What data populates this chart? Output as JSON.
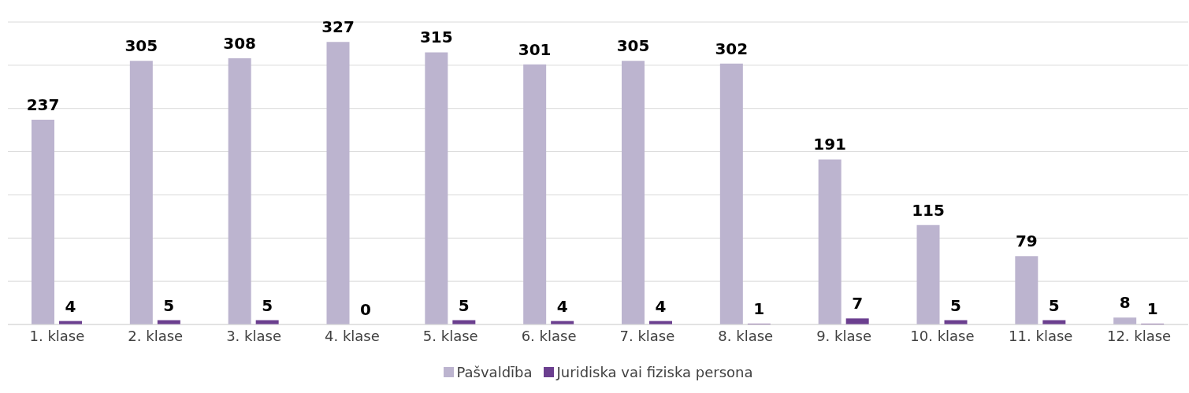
{
  "chart_data": {
    "type": "bar",
    "categories": [
      "1. klase",
      "2. klase",
      "3. klase",
      "4. klase",
      "5. klase",
      "6. klase",
      "7. klase",
      "8. klase",
      "9. klase",
      "10. klase",
      "11. klase",
      "12. klase"
    ],
    "series": [
      {
        "name": "Pašvaldība",
        "color": "#bcb4cf",
        "values": [
          237,
          305,
          308,
          327,
          315,
          301,
          305,
          302,
          191,
          115,
          79,
          8
        ]
      },
      {
        "name": "Juridiska vai fiziska persona",
        "color": "#6b3f8f",
        "values": [
          4,
          5,
          5,
          0,
          5,
          4,
          4,
          1,
          7,
          5,
          5,
          1
        ]
      }
    ],
    "tick_labels": "x",
    "grid": "y",
    "legend": "bottom",
    "data_labels": true
  }
}
